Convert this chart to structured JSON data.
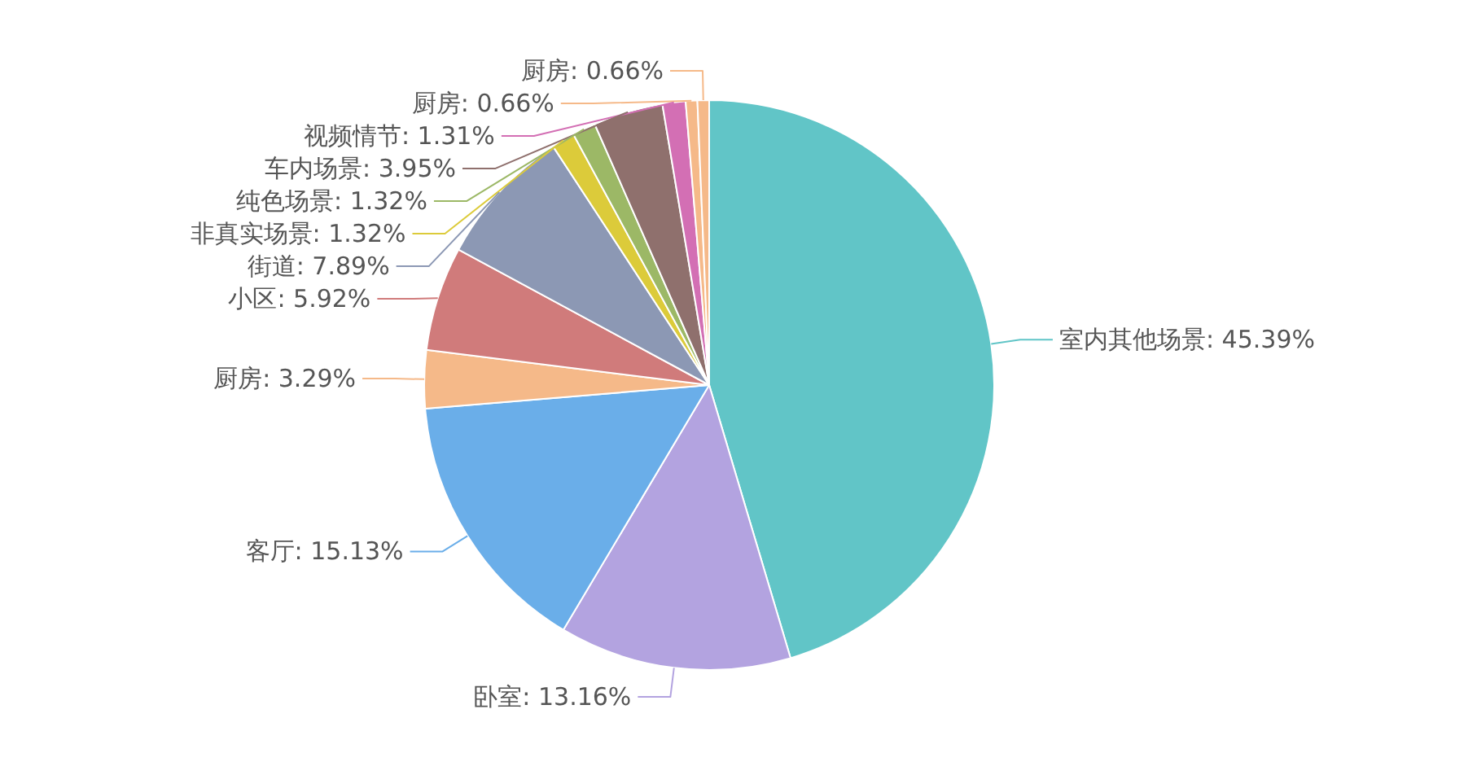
{
  "chart_data": {
    "type": "pie",
    "categories": [
      "室内其他场景",
      "卧室",
      "客厅",
      "厨房",
      "小区",
      "街道",
      "非真实场景",
      "纯色场景",
      "车内场景",
      "视频情节",
      "厨房",
      "厨房"
    ],
    "values": [
      45.39,
      13.16,
      15.13,
      3.29,
      5.92,
      7.89,
      1.32,
      1.32,
      3.95,
      1.31,
      0.66,
      0.66
    ],
    "value_labels": [
      "45.39%",
      "13.16%",
      "15.13%",
      "3.29%",
      "5.92%",
      "7.89%",
      "1.32%",
      "1.32%",
      "3.95%",
      "1.31%",
      "0.66%",
      "0.66%"
    ],
    "colors": [
      "#61c5c7",
      "#b3a3e0",
      "#6aaee9",
      "#f5b989",
      "#d07b7b",
      "#8c98b4",
      "#dccb3a",
      "#9cb866",
      "#8f706d",
      "#d36fb4",
      "#f5b989",
      "#f5b989"
    ]
  }
}
